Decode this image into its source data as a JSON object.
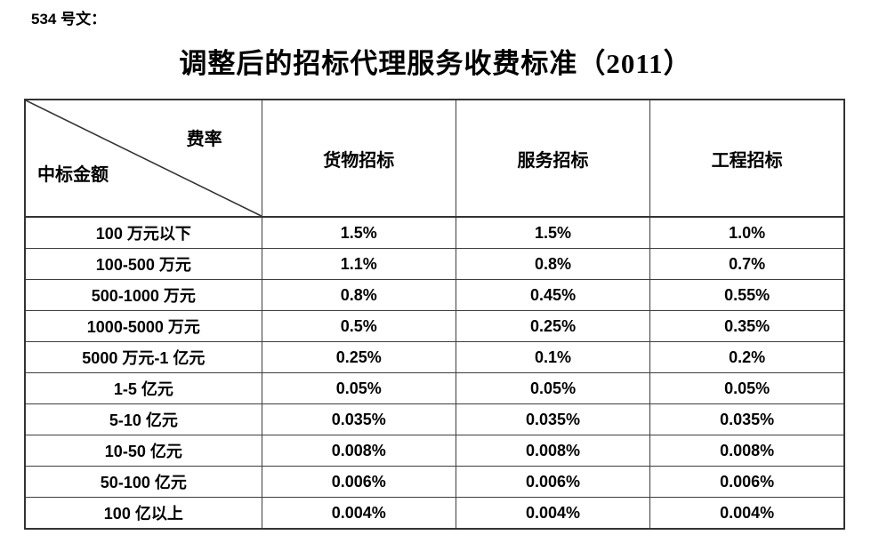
{
  "page": {
    "doc_label": "534 号文：",
    "title": "调整后的招标代理服务收费标准（2011）"
  },
  "table": {
    "corner_top_right": "费率",
    "corner_bottom_left": "中标金额",
    "columns": [
      "货物招标",
      "服务招标",
      "工程招标"
    ],
    "rows": [
      {
        "label": "100 万元以下",
        "values": [
          "1.5%",
          "1.5%",
          "1.0%"
        ]
      },
      {
        "label": "100-500 万元",
        "values": [
          "1.1%",
          "0.8%",
          "0.7%"
        ]
      },
      {
        "label": "500-1000 万元",
        "values": [
          "0.8%",
          "0.45%",
          "0.55%"
        ]
      },
      {
        "label": "1000-5000 万元",
        "values": [
          "0.5%",
          "0.25%",
          "0.35%"
        ]
      },
      {
        "label": "5000 万元-1 亿元",
        "values": [
          "0.25%",
          "0.1%",
          "0.2%"
        ]
      },
      {
        "label": "1-5 亿元",
        "values": [
          "0.05%",
          "0.05%",
          "0.05%"
        ]
      },
      {
        "label": "5-10 亿元",
        "values": [
          "0.035%",
          "0.035%",
          "0.035%"
        ]
      },
      {
        "label": "10-50 亿元",
        "values": [
          "0.008%",
          "0.008%",
          "0.008%"
        ]
      },
      {
        "label": "50-100 亿元",
        "values": [
          "0.006%",
          "0.006%",
          "0.006%"
        ]
      },
      {
        "label": "100 亿以上",
        "values": [
          "0.004%",
          "0.004%",
          "0.004%"
        ]
      }
    ]
  },
  "colors": {
    "text": "#000000",
    "border": "#3d3d3d",
    "background": "#ffffff"
  }
}
